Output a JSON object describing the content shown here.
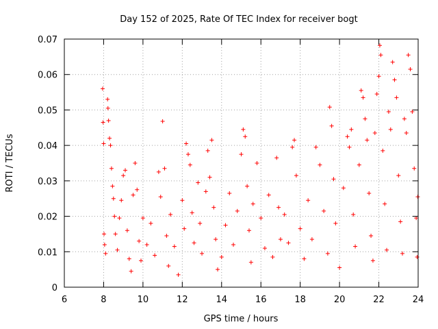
{
  "chart_data": {
    "type": "scatter",
    "title": "Day 152 of 2025, Rate Of TEC Index for receiver bogt",
    "xlabel": "GPS time / hours",
    "ylabel": "ROTI / TECUs",
    "xlim": [
      6,
      24
    ],
    "ylim": [
      0,
      0.07
    ],
    "xticks": [
      6,
      8,
      10,
      12,
      14,
      16,
      18,
      20,
      22,
      24
    ],
    "yticks": [
      0,
      0.01,
      0.02,
      0.03,
      0.04,
      0.05,
      0.06,
      0.07
    ],
    "xtick_labels": [
      "6",
      "8",
      "10",
      "12",
      "14",
      "16",
      "18",
      "20",
      "22",
      "24"
    ],
    "ytick_labels": [
      "0",
      "0.01",
      "0.02",
      "0.03",
      "0.04",
      "0.05",
      "0.06",
      "0.07"
    ],
    "grid": true,
    "marker": "+",
    "color": "#ff0000",
    "series": [
      {
        "points": [
          [
            7.95,
            0.056
          ],
          [
            7.97,
            0.0465
          ],
          [
            8.0,
            0.0405
          ],
          [
            8.02,
            0.015
          ],
          [
            8.05,
            0.012
          ],
          [
            8.1,
            0.0095
          ],
          [
            8.2,
            0.053
          ],
          [
            8.22,
            0.0505
          ],
          [
            8.25,
            0.047
          ],
          [
            8.3,
            0.042
          ],
          [
            8.35,
            0.04
          ],
          [
            8.4,
            0.0335
          ],
          [
            8.45,
            0.0285
          ],
          [
            8.5,
            0.025
          ],
          [
            8.55,
            0.02
          ],
          [
            8.6,
            0.015
          ],
          [
            8.7,
            0.0105
          ],
          [
            8.8,
            0.0195
          ],
          [
            8.9,
            0.0245
          ],
          [
            9.0,
            0.0315
          ],
          [
            9.1,
            0.033
          ],
          [
            9.2,
            0.016
          ],
          [
            9.3,
            0.008
          ],
          [
            9.4,
            0.0045
          ],
          [
            9.5,
            0.026
          ],
          [
            9.6,
            0.035
          ],
          [
            9.7,
            0.0275
          ],
          [
            9.8,
            0.013
          ],
          [
            9.9,
            0.0075
          ],
          [
            10.0,
            0.0195
          ],
          [
            10.2,
            0.012
          ],
          [
            10.4,
            0.018
          ],
          [
            10.6,
            0.009
          ],
          [
            10.8,
            0.0325
          ],
          [
            10.9,
            0.0255
          ],
          [
            11.0,
            0.0468
          ],
          [
            11.1,
            0.0335
          ],
          [
            11.2,
            0.0145
          ],
          [
            11.3,
            0.006
          ],
          [
            11.4,
            0.0205
          ],
          [
            11.6,
            0.0115
          ],
          [
            11.8,
            0.0035
          ],
          [
            12.0,
            0.0245
          ],
          [
            12.1,
            0.0165
          ],
          [
            12.2,
            0.0405
          ],
          [
            12.3,
            0.0375
          ],
          [
            12.4,
            0.0345
          ],
          [
            12.5,
            0.021
          ],
          [
            12.6,
            0.0125
          ],
          [
            12.8,
            0.0295
          ],
          [
            12.9,
            0.018
          ],
          [
            13.0,
            0.0095
          ],
          [
            13.2,
            0.027
          ],
          [
            13.3,
            0.0385
          ],
          [
            13.4,
            0.031
          ],
          [
            13.5,
            0.0415
          ],
          [
            13.6,
            0.0225
          ],
          [
            13.7,
            0.0135
          ],
          [
            13.8,
            0.005
          ],
          [
            14.0,
            0.0085
          ],
          [
            14.2,
            0.0175
          ],
          [
            14.4,
            0.0265
          ],
          [
            14.6,
            0.012
          ],
          [
            14.8,
            0.0215
          ],
          [
            15.0,
            0.0375
          ],
          [
            15.1,
            0.0445
          ],
          [
            15.2,
            0.0425
          ],
          [
            15.3,
            0.0285
          ],
          [
            15.4,
            0.016
          ],
          [
            15.5,
            0.007
          ],
          [
            15.6,
            0.0235
          ],
          [
            15.8,
            0.035
          ],
          [
            16.0,
            0.0195
          ],
          [
            16.2,
            0.011
          ],
          [
            16.4,
            0.026
          ],
          [
            16.6,
            0.0085
          ],
          [
            16.8,
            0.0365
          ],
          [
            16.9,
            0.0225
          ],
          [
            17.0,
            0.0135
          ],
          [
            17.2,
            0.0205
          ],
          [
            17.4,
            0.0125
          ],
          [
            17.6,
            0.0395
          ],
          [
            17.7,
            0.0415
          ],
          [
            17.8,
            0.0315
          ],
          [
            18.0,
            0.0165
          ],
          [
            18.2,
            0.008
          ],
          [
            18.4,
            0.0245
          ],
          [
            18.6,
            0.0135
          ],
          [
            18.8,
            0.0395
          ],
          [
            19.0,
            0.0345
          ],
          [
            19.2,
            0.0215
          ],
          [
            19.4,
            0.0095
          ],
          [
            19.5,
            0.0508
          ],
          [
            19.6,
            0.0455
          ],
          [
            19.7,
            0.0305
          ],
          [
            19.8,
            0.018
          ],
          [
            20.0,
            0.0055
          ],
          [
            20.2,
            0.028
          ],
          [
            20.4,
            0.0425
          ],
          [
            20.5,
            0.0395
          ],
          [
            20.6,
            0.0445
          ],
          [
            20.7,
            0.0205
          ],
          [
            20.8,
            0.0115
          ],
          [
            21.0,
            0.0345
          ],
          [
            21.1,
            0.0555
          ],
          [
            21.2,
            0.0535
          ],
          [
            21.3,
            0.0475
          ],
          [
            21.4,
            0.0415
          ],
          [
            21.5,
            0.0265
          ],
          [
            21.6,
            0.0145
          ],
          [
            21.7,
            0.0075
          ],
          [
            21.8,
            0.0435
          ],
          [
            21.9,
            0.0545
          ],
          [
            22.0,
            0.0595
          ],
          [
            22.05,
            0.0682
          ],
          [
            22.1,
            0.0655
          ],
          [
            22.2,
            0.0385
          ],
          [
            22.3,
            0.0235
          ],
          [
            22.4,
            0.0105
          ],
          [
            22.5,
            0.0495
          ],
          [
            22.6,
            0.0445
          ],
          [
            22.7,
            0.0635
          ],
          [
            22.8,
            0.0585
          ],
          [
            22.9,
            0.0535
          ],
          [
            23.0,
            0.0315
          ],
          [
            23.1,
            0.0185
          ],
          [
            23.2,
            0.0095
          ],
          [
            23.3,
            0.0475
          ],
          [
            23.4,
            0.0435
          ],
          [
            23.5,
            0.0655
          ],
          [
            23.6,
            0.0615
          ],
          [
            23.7,
            0.0495
          ],
          [
            23.8,
            0.0335
          ],
          [
            23.9,
            0.0195
          ],
          [
            23.95,
            0.0085
          ],
          [
            23.98,
            0.0255
          ]
        ]
      }
    ]
  }
}
